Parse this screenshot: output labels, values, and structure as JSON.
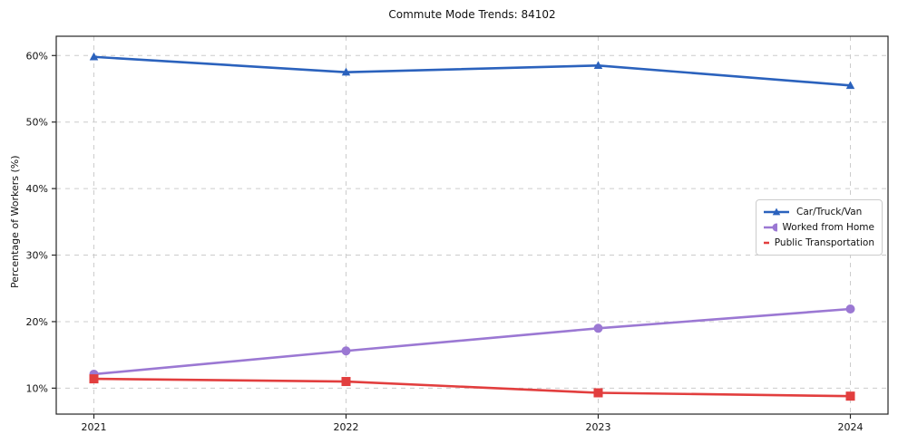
{
  "chart_data": {
    "type": "line",
    "title": "Commute Mode Trends: 84102",
    "xlabel": "",
    "ylabel": "Percentage of Workers (%)",
    "x": [
      "2021",
      "2022",
      "2023",
      "2024"
    ],
    "ylim": [
      6.1,
      62.9
    ],
    "ytick_values": [
      10,
      20,
      30,
      40,
      50,
      60
    ],
    "ytick_labels": [
      "10%",
      "20%",
      "30%",
      "40%",
      "50%",
      "60%"
    ],
    "grid": true,
    "legend_position": "center-right",
    "series": [
      {
        "name": "Car/Truck/Van",
        "color": "#2b62bd",
        "marker": "triangle",
        "values": [
          59.8,
          57.5,
          58.5,
          55.5
        ]
      },
      {
        "name": "Worked from Home",
        "color": "#9b78d3",
        "marker": "circle",
        "values": [
          12.1,
          15.6,
          19.0,
          21.9
        ]
      },
      {
        "name": "Public Transportation",
        "color": "#e23e3e",
        "marker": "square",
        "values": [
          11.4,
          11.0,
          9.3,
          8.8
        ]
      }
    ],
    "colors": {
      "grid": "#cccccc",
      "axis_border": "#262626",
      "text": "#111111"
    }
  }
}
